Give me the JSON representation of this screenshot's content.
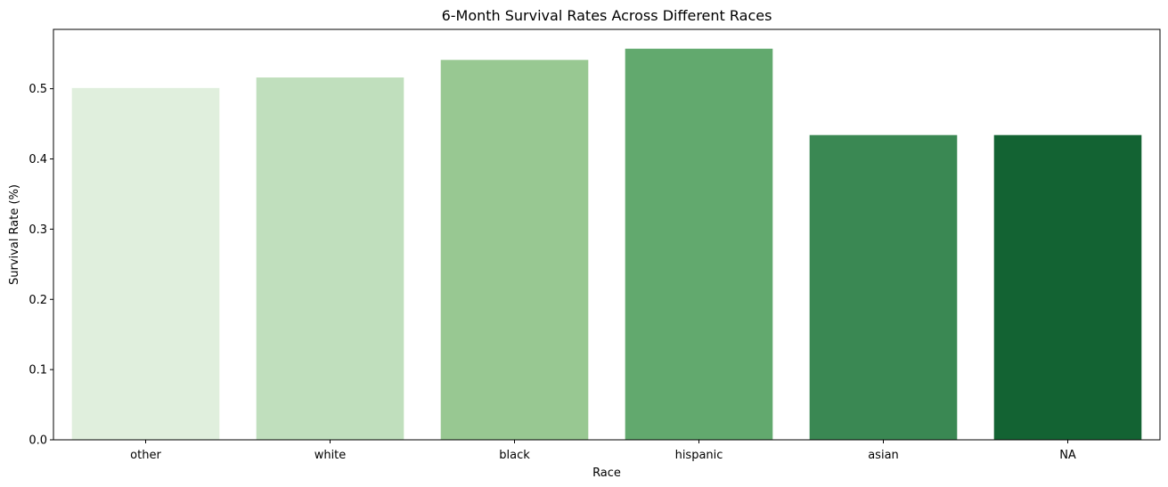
{
  "chart_data": {
    "type": "bar",
    "title": "6-Month Survival Rates Across Different Races",
    "xlabel": "Race",
    "ylabel": "Survival Rate (%)",
    "categories": [
      "other",
      "white",
      "black",
      "hispanic",
      "asian",
      "NA"
    ],
    "values": [
      0.501,
      0.516,
      0.541,
      0.557,
      0.434,
      0.434
    ],
    "colors": [
      "#e0efdd",
      "#c0dfbd",
      "#98c892",
      "#62a96e",
      "#3a8853",
      "#136333"
    ],
    "ylim": [
      0,
      0.5845
    ],
    "yticks": [
      0.0,
      0.1,
      0.2,
      0.3,
      0.4,
      0.5
    ],
    "ytick_labels": [
      "0.0",
      "0.1",
      "0.2",
      "0.3",
      "0.4",
      "0.5"
    ],
    "grid": false,
    "legend": "none"
  }
}
